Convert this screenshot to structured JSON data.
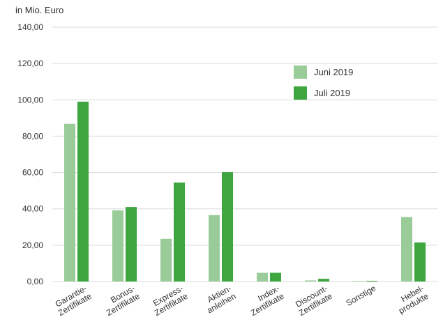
{
  "chart_data": {
    "type": "bar",
    "unit_label": "in Mio. Euro",
    "ylim": [
      0,
      140
    ],
    "yticks": [
      "0,00",
      "20,00",
      "40,00",
      "60,00",
      "80,00",
      "100,00",
      "120,00",
      "140,00"
    ],
    "grid": true,
    "legend_position": "top-right",
    "categories": [
      [
        "Garantie-",
        "Zertifikate"
      ],
      [
        "Bonus-",
        "Zertifikate"
      ],
      [
        "Express-",
        "Zertifikate"
      ],
      [
        "Aktien-",
        "anleihen"
      ],
      [
        "Index-",
        "Zertifikate"
      ],
      [
        "Discount-",
        "Zertifikate"
      ],
      [
        "Sonstige"
      ],
      [
        "Hebel-",
        "produkte"
      ]
    ],
    "series": [
      {
        "name": "Juni 2019",
        "color": "#99cc99",
        "values": [
          86.8,
          39.2,
          23.5,
          36.6,
          4.8,
          0.6,
          0.3,
          35.5
        ]
      },
      {
        "name": "Juli 2019",
        "color": "#3ea63e",
        "values": [
          99.0,
          41.0,
          54.5,
          60.2,
          4.8,
          1.5,
          0.4,
          21.5
        ]
      }
    ]
  }
}
